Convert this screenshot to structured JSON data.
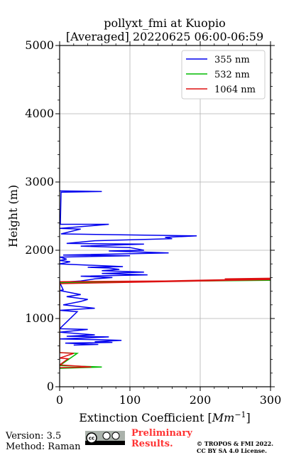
{
  "chart_data": {
    "type": "line",
    "title": "pollyxt_fmi at Kuopio",
    "subtitle": "[Averaged] 20220625 06:00-06:59",
    "xlabel": "Extinction Coefficient [",
    "xlabel_unit": "Mm",
    "xlabel_exp": "−1",
    "xlabel_close": "]",
    "ylabel": "Height (m)",
    "xlim": [
      0,
      300
    ],
    "ylim": [
      0,
      5000
    ],
    "xticks": [
      0,
      100,
      200,
      300
    ],
    "yticks": [
      0,
      1000,
      2000,
      3000,
      4000,
      5000
    ],
    "xtick_labels": [
      "0",
      "100",
      "200",
      "300"
    ],
    "ytick_labels": [
      "0",
      "1000",
      "2000",
      "3000",
      "4000",
      "5000"
    ],
    "grid": true,
    "legend_position": "top-right",
    "series": [
      {
        "name": "355 nm",
        "color": "#0000ee",
        "points": [
          [
            0,
            2870
          ],
          [
            60,
            2860
          ],
          [
            2,
            2850
          ],
          [
            1,
            2380
          ],
          [
            70,
            2380
          ],
          [
            0,
            2320
          ],
          [
            30,
            2310
          ],
          [
            2,
            2240
          ],
          [
            195,
            2210
          ],
          [
            150,
            2190
          ],
          [
            160,
            2170
          ],
          [
            50,
            2140
          ],
          [
            10,
            2100
          ],
          [
            120,
            2090
          ],
          [
            30,
            2060
          ],
          [
            100,
            2040
          ],
          [
            120,
            2000
          ],
          [
            70,
            1990
          ],
          [
            155,
            1960
          ],
          [
            5,
            1930
          ],
          [
            100,
            1920
          ],
          [
            0,
            1900
          ],
          [
            10,
            1870
          ],
          [
            0,
            1850
          ],
          [
            15,
            1830
          ],
          [
            0,
            1800
          ],
          [
            90,
            1760
          ],
          [
            40,
            1750
          ],
          [
            70,
            1740
          ],
          [
            85,
            1720
          ],
          [
            60,
            1700
          ],
          [
            120,
            1680
          ],
          [
            60,
            1660
          ],
          [
            125,
            1640
          ],
          [
            30,
            1620
          ],
          [
            75,
            1600
          ],
          [
            50,
            1580
          ],
          [
            30,
            1550
          ],
          [
            0,
            1530
          ],
          [
            5,
            1420
          ],
          [
            0,
            1410
          ],
          [
            20,
            1370
          ],
          [
            30,
            1350
          ],
          [
            10,
            1320
          ],
          [
            40,
            1280
          ],
          [
            30,
            1250
          ],
          [
            5,
            1200
          ],
          [
            50,
            1150
          ],
          [
            0,
            1120
          ],
          [
            25,
            1100
          ],
          [
            0,
            850
          ],
          [
            40,
            840
          ],
          [
            0,
            800
          ],
          [
            50,
            760
          ],
          [
            10,
            740
          ],
          [
            70,
            730
          ],
          [
            0,
            700
          ],
          [
            55,
            690
          ],
          [
            88,
            680
          ],
          [
            50,
            660
          ],
          [
            75,
            650
          ],
          [
            8,
            640
          ],
          [
            55,
            620
          ],
          [
            20,
            610
          ]
        ]
      },
      {
        "name": "532 nm",
        "color": "#00bb00",
        "points": [
          [
            0,
            1530
          ],
          [
            300,
            1560
          ],
          [
            170,
            1550
          ],
          [
            0,
            1520
          ],
          [
            0,
            500
          ],
          [
            25,
            490
          ],
          [
            0,
            310
          ],
          [
            60,
            290
          ],
          [
            0,
            270
          ]
        ]
      },
      {
        "name": "1064 nm",
        "color": "#dd1111",
        "points": [
          [
            0,
            1510
          ],
          [
            300,
            1570
          ],
          [
            235,
            1580
          ],
          [
            300,
            1590
          ],
          [
            295,
            1580
          ],
          [
            150,
            1550
          ],
          [
            0,
            1540
          ],
          [
            0,
            500
          ],
          [
            20,
            490
          ],
          [
            0,
            420
          ],
          [
            12,
            410
          ],
          [
            0,
            320
          ],
          [
            45,
            290
          ],
          [
            0,
            280
          ]
        ]
      }
    ]
  },
  "footer": {
    "version": "Version: 3.5",
    "method": "Method: Raman",
    "preliminary_line1": "Preliminary",
    "preliminary_line2": "Results.",
    "copyright_line1": "© TROPOS & FMI 2022.",
    "copyright_line2": "CC BY SA 4.0 License."
  }
}
